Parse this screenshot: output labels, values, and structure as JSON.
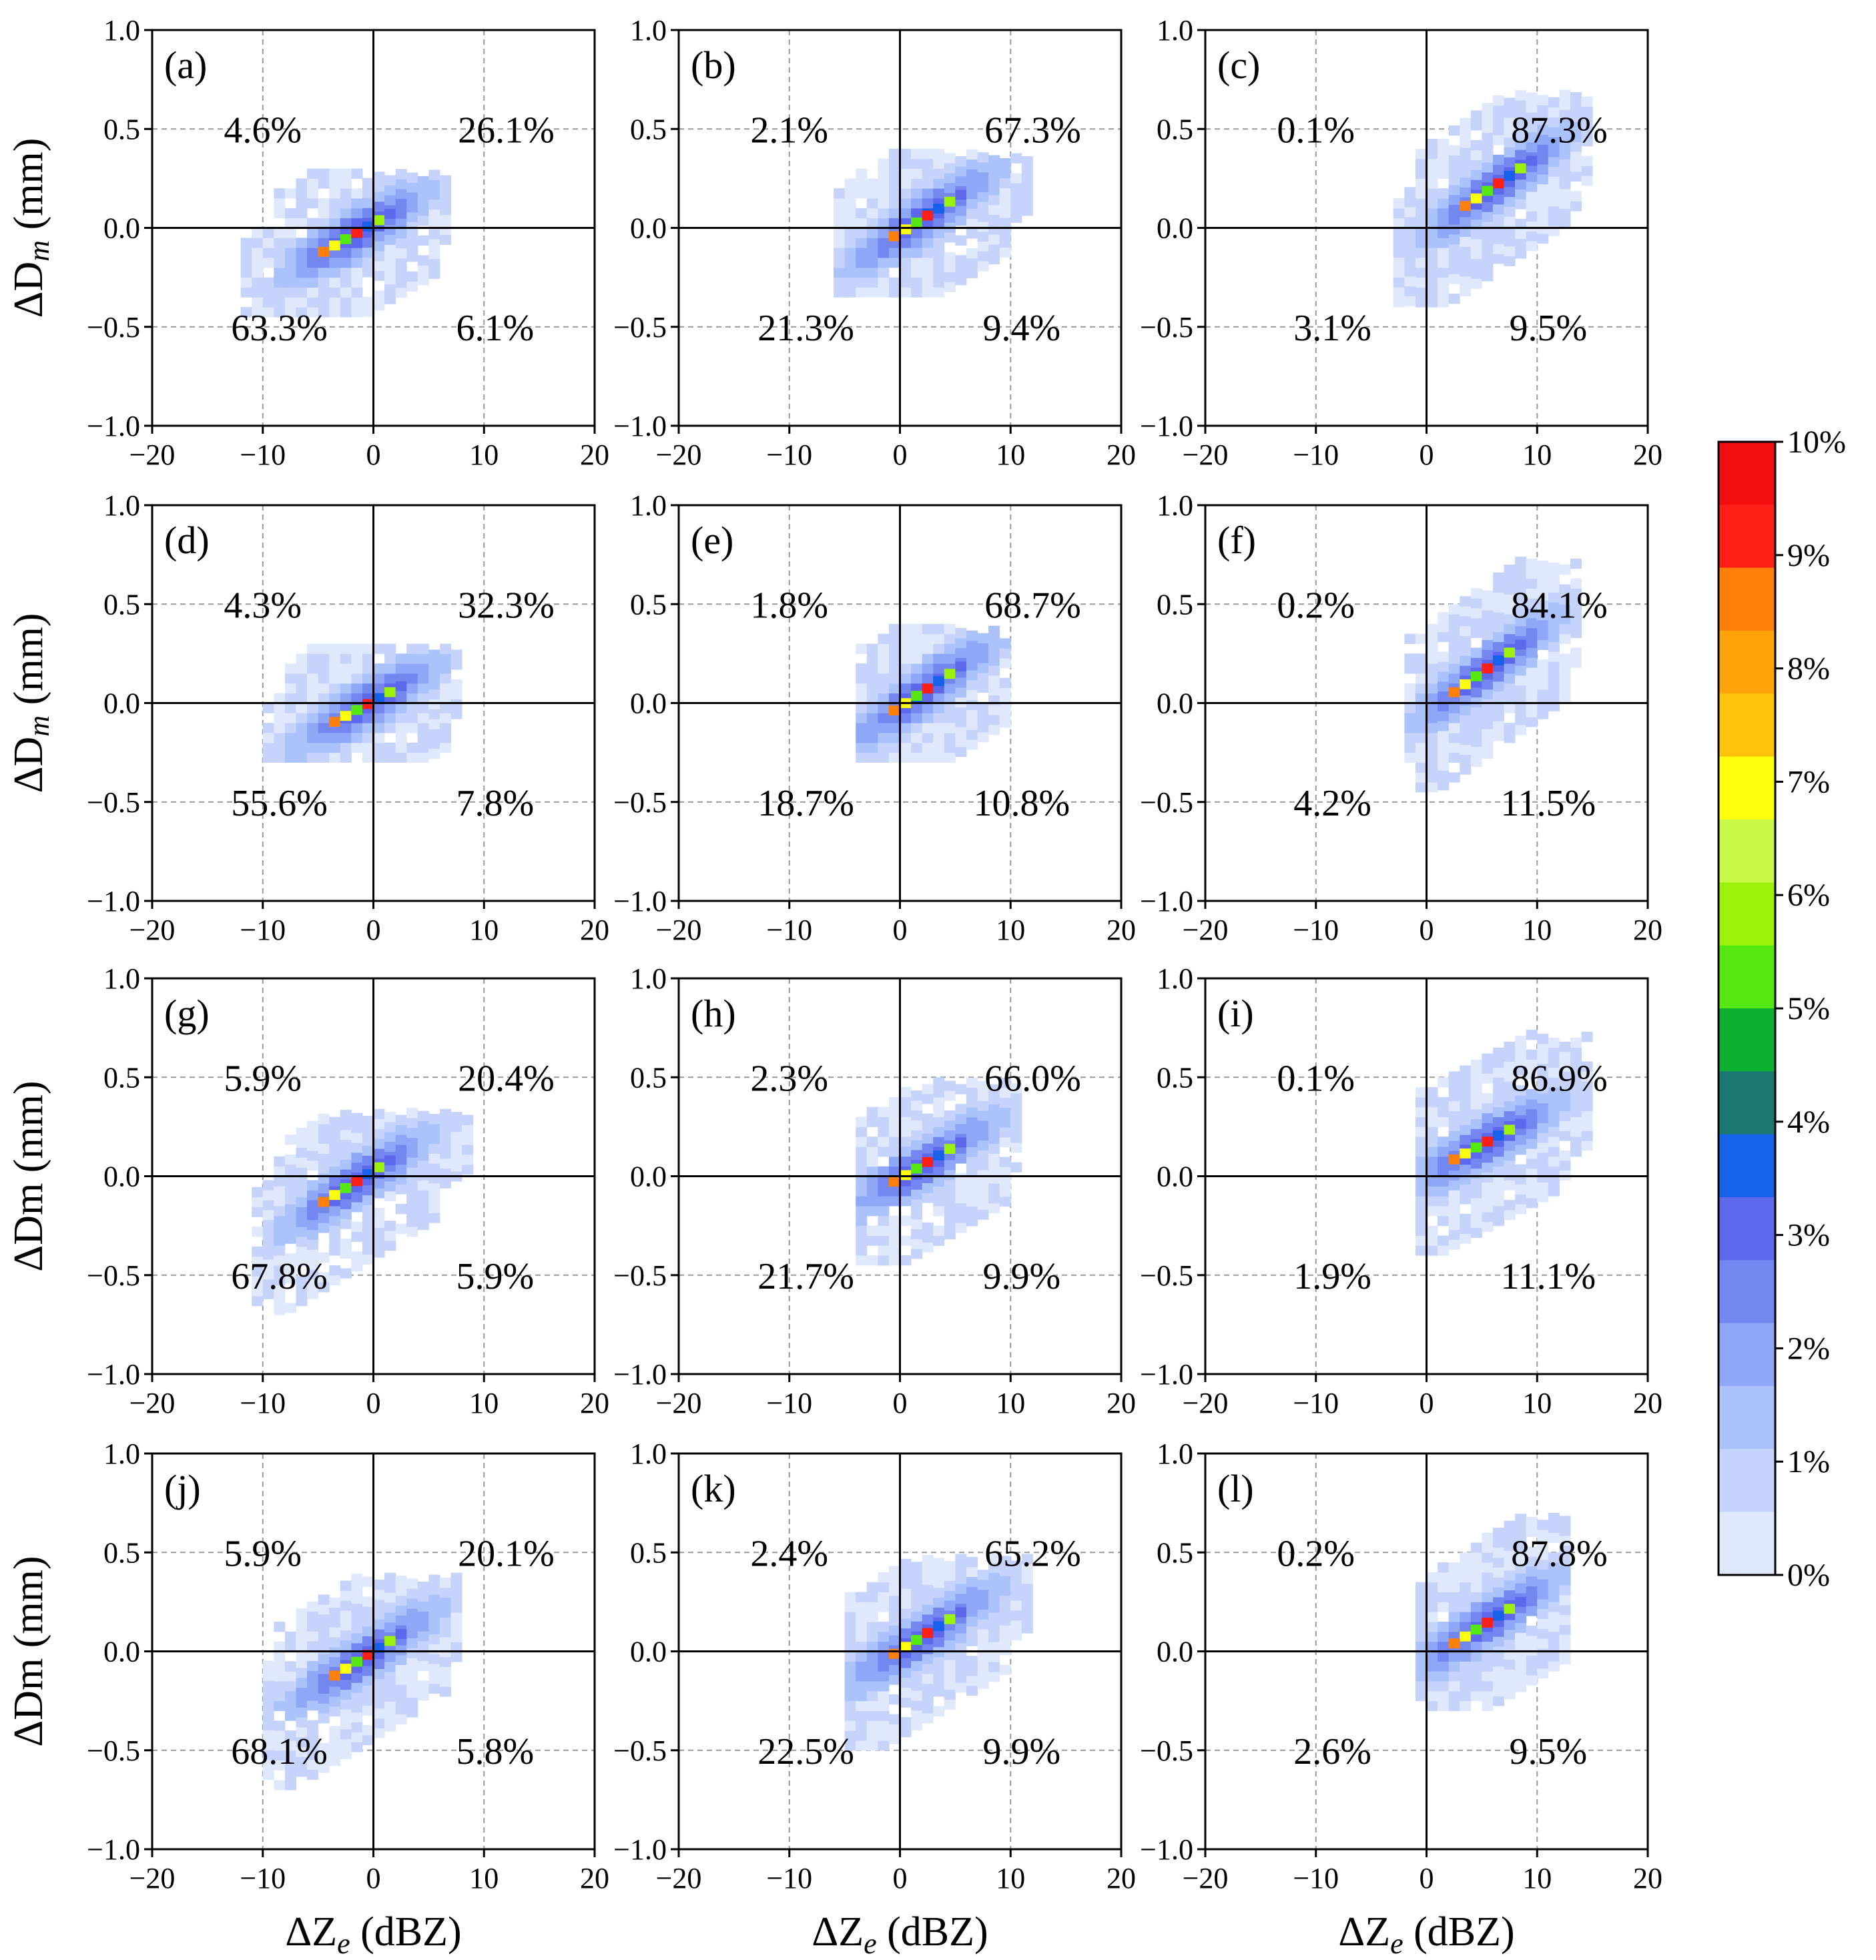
{
  "chart_data": {
    "type": "heatmap",
    "layout": {
      "rows": 4,
      "cols": 3
    },
    "xlabel": "ΔZe (dBZ)",
    "xlabel_main": "ΔZ",
    "xlabel_sub": "e",
    "xlabel_unit": " (dBZ)",
    "xlim": [
      -20,
      20
    ],
    "xticks": [
      -20,
      -10,
      0,
      10,
      20
    ],
    "ylim": [
      -1.0,
      1.0
    ],
    "yticks": [
      -1.0,
      -0.5,
      0.0,
      0.5,
      1.0
    ],
    "ytick_labels": [
      "−1.0",
      "−0.5",
      "0.0",
      "0.5",
      "1.0"
    ],
    "xtick_labels": [
      "−20",
      "−10",
      "0",
      "10",
      "20"
    ],
    "row_ylabels": [
      {
        "main": "ΔD",
        "sub": "m",
        "unit": " (mm)"
      },
      {
        "main": "ΔD",
        "sub": "m",
        "unit": " (mm)"
      },
      {
        "main": "ΔDm",
        "sub": "",
        "unit": " (mm)"
      },
      {
        "main": "ΔDm",
        "sub": "",
        "unit": " (mm)"
      }
    ],
    "grid": "dashed",
    "colorbar": {
      "labels": [
        "0%",
        "1%",
        "2%",
        "3%",
        "4%",
        "5%",
        "6%",
        "7%",
        "8%",
        "9%",
        "10%"
      ],
      "levels": [
        "#e0e9fb",
        "#c6d4fb",
        "#abc2fb",
        "#8ea8f7",
        "#7487f1",
        "#5e68ec",
        "#1561ec",
        "#197670",
        "#0eb032",
        "#55e911",
        "#9cf20a",
        "#c8f94a",
        "#ffff0c",
        "#ffc20d",
        "#ffa30a",
        "#fe800b",
        "#fe1f16",
        "#f20e10"
      ]
    },
    "panels": [
      {
        "label": "(a)",
        "quadrants": {
          "top_left": "4.6%",
          "top_right": "26.1%",
          "bottom_left": "63.3%",
          "bottom_right": "6.1%"
        },
        "center": [
          -2,
          -0.05
        ],
        "spread": [
          [
            -12,
            6
          ],
          [
            -0.45,
            0.25
          ]
        ],
        "slope": 0.032
      },
      {
        "label": "(b)",
        "quadrants": {
          "top_left": "2.1%",
          "top_right": "67.3%",
          "bottom_left": "21.3%",
          "bottom_right": "9.4%"
        },
        "center": [
          1.5,
          0.02
        ],
        "spread": [
          [
            -6,
            11
          ],
          [
            -0.35,
            0.35
          ]
        ],
        "slope": 0.035
      },
      {
        "label": "(c)",
        "quadrants": {
          "top_left": "0.1%",
          "top_right": "87.3%",
          "bottom_left": "3.1%",
          "bottom_right": "9.5%"
        },
        "center": [
          6,
          0.2
        ],
        "spread": [
          [
            -3,
            14
          ],
          [
            -0.4,
            0.65
          ]
        ],
        "slope": 0.038
      },
      {
        "label": "(d)",
        "quadrants": {
          "top_left": "4.3%",
          "top_right": "32.3%",
          "bottom_left": "55.6%",
          "bottom_right": "7.8%"
        },
        "center": [
          -1,
          -0.03
        ],
        "spread": [
          [
            -10,
            7
          ],
          [
            -0.3,
            0.25
          ]
        ],
        "slope": 0.03
      },
      {
        "label": "(e)",
        "quadrants": {
          "top_left": "1.8%",
          "top_right": "68.7%",
          "bottom_left": "18.7%",
          "bottom_right": "10.8%"
        },
        "center": [
          1.5,
          0.03
        ],
        "spread": [
          [
            -4,
            9
          ],
          [
            -0.3,
            0.35
          ]
        ],
        "slope": 0.037
      },
      {
        "label": "(f)",
        "quadrants": {
          "top_left": "0.2%",
          "top_right": "84.1%",
          "bottom_left": "4.2%",
          "bottom_right": "11.5%"
        },
        "center": [
          5,
          0.15
        ],
        "spread": [
          [
            -2,
            13
          ],
          [
            -0.45,
            0.7
          ]
        ],
        "slope": 0.04
      },
      {
        "label": "(g)",
        "quadrants": {
          "top_left": "5.9%",
          "top_right": "20.4%",
          "bottom_left": "67.8%",
          "bottom_right": "5.9%"
        },
        "center": [
          -2,
          -0.05
        ],
        "spread": [
          [
            -11,
            8
          ],
          [
            -0.7,
            0.3
          ]
        ],
        "slope": 0.035
      },
      {
        "label": "(h)",
        "quadrants": {
          "top_left": "2.3%",
          "top_right": "66.0%",
          "bottom_left": "21.7%",
          "bottom_right": "9.9%"
        },
        "center": [
          1.5,
          0.03
        ],
        "spread": [
          [
            -4,
            10
          ],
          [
            -0.45,
            0.45
          ]
        ],
        "slope": 0.033
      },
      {
        "label": "(i)",
        "quadrants": {
          "top_left": "0.1%",
          "top_right": "86.9%",
          "bottom_left": "1.9%",
          "bottom_right": "11.1%"
        },
        "center": [
          5,
          0.15
        ],
        "spread": [
          [
            -1,
            14
          ],
          [
            -0.4,
            0.7
          ]
        ],
        "slope": 0.03
      },
      {
        "label": "(j)",
        "quadrants": {
          "top_left": "5.9%",
          "top_right": "20.1%",
          "bottom_left": "68.1%",
          "bottom_right": "5.8%"
        },
        "center": [
          -1.5,
          -0.06
        ],
        "spread": [
          [
            -10,
            7
          ],
          [
            -0.7,
            0.35
          ]
        ],
        "slope": 0.035
      },
      {
        "label": "(k)",
        "quadrants": {
          "top_left": "2.4%",
          "top_right": "65.2%",
          "bottom_left": "22.5%",
          "bottom_right": "9.9%"
        },
        "center": [
          1.5,
          0.05
        ],
        "spread": [
          [
            -5,
            11
          ],
          [
            -0.5,
            0.45
          ]
        ],
        "slope": 0.035
      },
      {
        "label": "(l)",
        "quadrants": {
          "top_left": "0.2%",
          "top_right": "87.8%",
          "bottom_left": "2.6%",
          "bottom_right": "9.5%"
        },
        "center": [
          5,
          0.12
        ],
        "spread": [
          [
            -1,
            12
          ],
          [
            -0.3,
            0.65
          ]
        ],
        "slope": 0.035
      }
    ]
  }
}
